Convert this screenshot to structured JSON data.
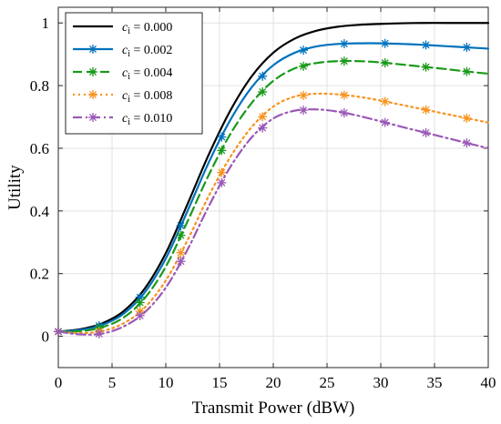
{
  "chart_data": {
    "type": "line",
    "title": "",
    "xlabel": "Transmit Power (dBW)",
    "ylabel": "Utility",
    "xlim": [
      0,
      40
    ],
    "ylim": [
      -0.1,
      1.05
    ],
    "xticks": [
      0,
      5,
      10,
      15,
      20,
      25,
      30,
      35,
      40
    ],
    "yticks": [
      0,
      0.2,
      0.4,
      0.6,
      0.8,
      1
    ],
    "xtick_labels": [
      "0",
      "5",
      "10",
      "15",
      "20",
      "25",
      "30",
      "35",
      "40"
    ],
    "ytick_labels": [
      "0",
      "0.2",
      "0.4",
      "0.6",
      "0.8",
      "1"
    ],
    "grid": true,
    "legend_position": "top-left",
    "x": [
      0,
      2,
      4,
      6,
      8,
      10,
      12,
      14,
      16,
      18,
      20,
      22,
      24,
      26,
      28,
      30,
      32,
      34,
      36,
      38,
      40
    ],
    "marker_x": [
      0,
      3.8,
      7.6,
      11.4,
      15.2,
      19,
      22.8,
      26.6,
      30.4,
      34.2,
      38
    ],
    "series": [
      {
        "name_prefix": "c",
        "name_sub": "i",
        "name_value": " = 0.000",
        "color": "#000000",
        "dash": "",
        "marker": false,
        "y": [
          0.015,
          0.022,
          0.04,
          0.078,
          0.15,
          0.265,
          0.42,
          0.58,
          0.72,
          0.83,
          0.905,
          0.95,
          0.975,
          0.988,
          0.994,
          0.997,
          0.999,
          1.0,
          1.0,
          1.0,
          1.0
        ]
      },
      {
        "name_prefix": "c",
        "name_sub": "i",
        "name_value": " = 0.002",
        "color": "#0072BD",
        "dash": "",
        "marker": true,
        "y": [
          0.015,
          0.02,
          0.035,
          0.07,
          0.138,
          0.248,
          0.398,
          0.555,
          0.69,
          0.795,
          0.865,
          0.905,
          0.925,
          0.933,
          0.935,
          0.935,
          0.933,
          0.93,
          0.926,
          0.922,
          0.918
        ]
      },
      {
        "name_prefix": "c",
        "name_sub": "i",
        "name_value": " = 0.004",
        "color": "#1A9A1A",
        "dash": "10 5",
        "marker": true,
        "y": [
          0.015,
          0.016,
          0.028,
          0.058,
          0.12,
          0.222,
          0.365,
          0.515,
          0.645,
          0.745,
          0.815,
          0.855,
          0.872,
          0.878,
          0.878,
          0.874,
          0.867,
          0.86,
          0.853,
          0.845,
          0.838
        ]
      },
      {
        "name_prefix": "c",
        "name_sub": "i",
        "name_value": " = 0.008",
        "color": "#F7931E",
        "dash": "2 4",
        "marker": true,
        "y": [
          0.015,
          0.01,
          0.016,
          0.04,
          0.09,
          0.178,
          0.305,
          0.448,
          0.572,
          0.668,
          0.733,
          0.765,
          0.774,
          0.772,
          0.764,
          0.752,
          0.738,
          0.724,
          0.71,
          0.696,
          0.682
        ]
      },
      {
        "name_prefix": "c",
        "name_sub": "i",
        "name_value": " = 0.010",
        "color": "#9B59B6",
        "dash": "10 4 2 4",
        "marker": true,
        "y": [
          0.015,
          0.006,
          0.008,
          0.03,
          0.075,
          0.155,
          0.275,
          0.415,
          0.54,
          0.635,
          0.695,
          0.72,
          0.724,
          0.717,
          0.703,
          0.686,
          0.668,
          0.651,
          0.634,
          0.617,
          0.6
        ]
      }
    ]
  }
}
